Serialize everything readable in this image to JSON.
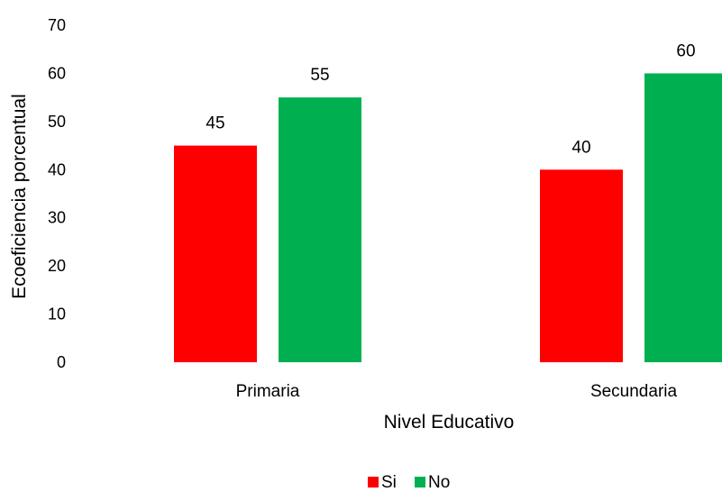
{
  "chart_data": {
    "type": "bar",
    "categories": [
      "Primaria",
      "Secundaria"
    ],
    "series": [
      {
        "name": "Si",
        "values": [
          45,
          40
        ],
        "color": "#FF0000"
      },
      {
        "name": "No",
        "values": [
          55,
          60
        ],
        "color": "#00B050"
      }
    ],
    "xlabel": "Nivel Educativo",
    "ylabel": "Ecoeficiencia porcentual",
    "ylim": [
      0,
      70
    ],
    "yticks": [
      0,
      10,
      20,
      30,
      40,
      50,
      60,
      70
    ],
    "grid": false,
    "legend": "bottom"
  }
}
